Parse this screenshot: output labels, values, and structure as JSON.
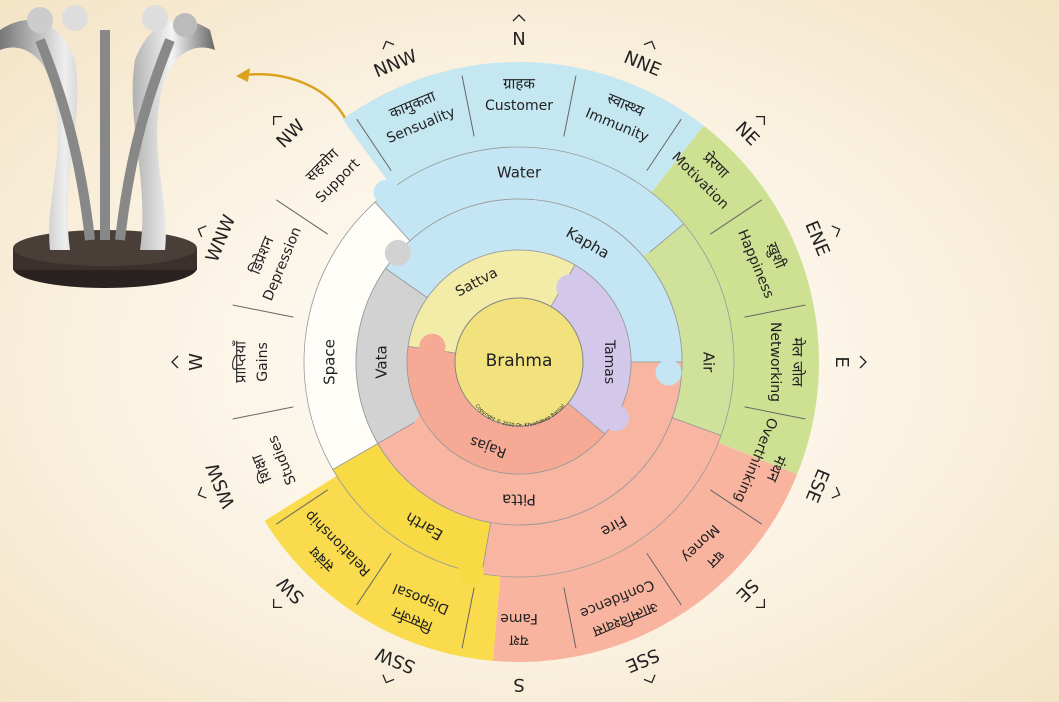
{
  "center": {
    "label": "Brahma",
    "copyright": "Copyright © 2020 Dr. Khushdeep Bansal"
  },
  "gunas": [
    {
      "label": "Sattva",
      "color": "#f3eca8"
    },
    {
      "label": "Tamas",
      "color": "#d3c8ea"
    },
    {
      "label": "Rajas",
      "color": "#f6a994"
    }
  ],
  "doshas": [
    {
      "label": "Kapha",
      "color": "#c4e6f4"
    },
    {
      "label": "Pitta",
      "color": "#f8b6a2"
    },
    {
      "label": "Vata",
      "color": "#d2d2d2"
    }
  ],
  "elements": [
    {
      "label": "Water",
      "color": "#c4e6f4"
    },
    {
      "label": "Air",
      "color": "#cfe19a"
    },
    {
      "label": "Fire",
      "color": "#f8b6a2"
    },
    {
      "label": "Earth",
      "color": "#f8da45"
    },
    {
      "label": "Space",
      "color": "#fffdf8"
    }
  ],
  "zones": [
    {
      "direction": "N",
      "hindi": "ग्राहक",
      "english": "Customer"
    },
    {
      "direction": "NNE",
      "hindi": "स्वास्थ्य",
      "english": "Immunity"
    },
    {
      "direction": "NE",
      "hindi": "प्रेरणा",
      "english": "Motivation"
    },
    {
      "direction": "ENE",
      "hindi": "ख़ुशी",
      "english": "Happiness"
    },
    {
      "direction": "E",
      "hindi": "मेल जोल",
      "english": "Networking"
    },
    {
      "direction": "ESE",
      "hindi": "मंथन",
      "english": "Overthinking"
    },
    {
      "direction": "SE",
      "hindi": "धन",
      "english": "Money"
    },
    {
      "direction": "SSE",
      "hindi": "आत्मविश्वास",
      "english": "Confidence"
    },
    {
      "direction": "S",
      "hindi": "यश",
      "english": "Fame"
    },
    {
      "direction": "SSW",
      "hindi": "विसर्जन",
      "english": "Disposal"
    },
    {
      "direction": "SW",
      "hindi": "संबंध",
      "english": "Relationship"
    },
    {
      "direction": "WSW",
      "hindi": "शिक्षा",
      "english": "Studies"
    },
    {
      "direction": "W",
      "hindi": "प्राप्तियाँ",
      "english": "Gains"
    },
    {
      "direction": "WNW",
      "hindi": "डिप्रेशन",
      "english": "Depression"
    },
    {
      "direction": "NW",
      "hindi": "सहयोग",
      "english": "Support"
    },
    {
      "direction": "NNW",
      "hindi": "कामुकता",
      "english": "Sensuality"
    }
  ],
  "zone_colors": {
    "water": "#bfe5f3",
    "air": "#c9df8a",
    "fire": "#f8ad98",
    "earth": "#f8d83c"
  }
}
